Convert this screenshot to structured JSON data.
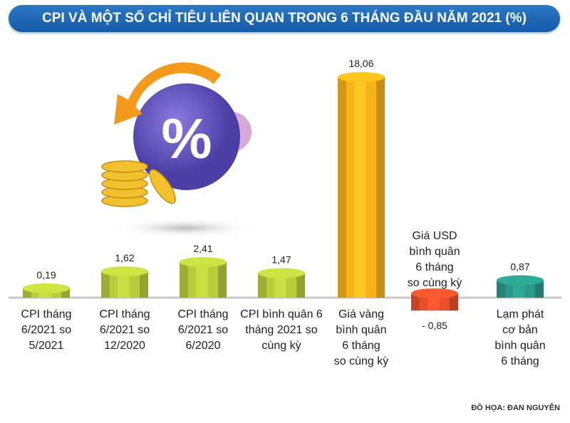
{
  "chart_data": {
    "type": "bar",
    "title": "CPI VÀ MỘT SỐ CHỈ TIÊU LIÊN QUAN TRONG 6 THÁNG ĐẦU NĂM 2021 (%)",
    "categories": [
      [
        "CPI tháng",
        "6/2021 so",
        "5/2021"
      ],
      [
        "CPI tháng",
        "6/2021 so",
        "12/2020"
      ],
      [
        "CPI tháng",
        "6/2021 so",
        "6/2020"
      ],
      [
        "CPI bình quân 6",
        "tháng 2021 so",
        "cùng kỳ"
      ],
      [
        "Giá vàng",
        "bình quân",
        "6 tháng",
        "so cùng kỳ"
      ],
      [
        "Giá USD",
        "bình quân",
        "6 tháng",
        "so cùng kỳ"
      ],
      [
        "Lạm phát",
        "cơ bản",
        "bình quân",
        "6 tháng"
      ]
    ],
    "values": [
      0.19,
      1.62,
      2.41,
      1.47,
      18.06,
      -0.85,
      0.87
    ],
    "value_labels": [
      "0,19",
      "1,62",
      "2,41",
      "1,47",
      "18,06",
      "- 0,85",
      "0,87"
    ],
    "colors": [
      "#b8cc3c",
      "#b8cc3c",
      "#b8cc3c",
      "#b8cc3c",
      "#f7b21a",
      "#e8502a",
      "#2a9a88"
    ],
    "xlabel": "",
    "ylabel": ""
  },
  "credit": "ĐỒ HỌA: ĐAN NGUYỄN",
  "icon_text": "%"
}
